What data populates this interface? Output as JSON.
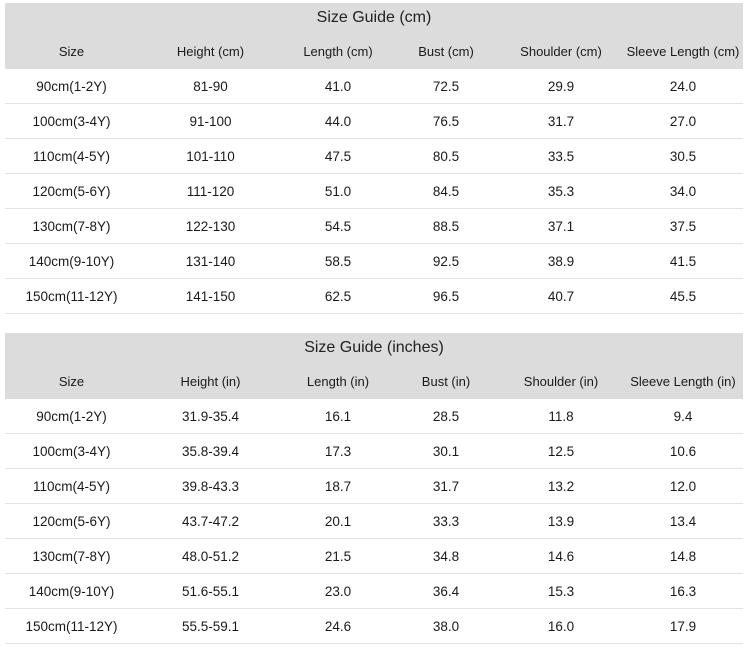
{
  "cm": {
    "title": "Size Guide (cm)",
    "columns": [
      "Size",
      "Height (cm)",
      "Length (cm)",
      "Bust (cm)",
      "Shoulder (cm)",
      "Sleeve Length (cm)"
    ],
    "rows": [
      [
        "90cm(1-2Y)",
        "81-90",
        "41.0",
        "72.5",
        "29.9",
        "24.0"
      ],
      [
        "100cm(3-4Y)",
        "91-100",
        "44.0",
        "76.5",
        "31.7",
        "27.0"
      ],
      [
        "110cm(4-5Y)",
        "101-110",
        "47.5",
        "80.5",
        "33.5",
        "30.5"
      ],
      [
        "120cm(5-6Y)",
        "111-120",
        "51.0",
        "84.5",
        "35.3",
        "34.0"
      ],
      [
        "130cm(7-8Y)",
        "122-130",
        "54.5",
        "88.5",
        "37.1",
        "37.5"
      ],
      [
        "140cm(9-10Y)",
        "131-140",
        "58.5",
        "92.5",
        "38.9",
        "41.5"
      ],
      [
        "150cm(11-12Y)",
        "141-150",
        "62.5",
        "96.5",
        "40.7",
        "45.5"
      ]
    ]
  },
  "inches": {
    "title": "Size Guide (inches)",
    "columns": [
      "Size",
      "Height (in)",
      "Length (in)",
      "Bust (in)",
      "Shoulder (in)",
      "Sleeve Length (in)"
    ],
    "rows": [
      [
        "90cm(1-2Y)",
        "31.9-35.4",
        "16.1",
        "28.5",
        "11.8",
        "9.4"
      ],
      [
        "100cm(3-4Y)",
        "35.8-39.4",
        "17.3",
        "30.1",
        "12.5",
        "10.6"
      ],
      [
        "110cm(4-5Y)",
        "39.8-43.3",
        "18.7",
        "31.7",
        "13.2",
        "12.0"
      ],
      [
        "120cm(5-6Y)",
        "43.7-47.2",
        "20.1",
        "33.3",
        "13.9",
        "13.4"
      ],
      [
        "130cm(7-8Y)",
        "48.0-51.2",
        "21.5",
        "34.8",
        "14.6",
        "14.8"
      ],
      [
        "140cm(9-10Y)",
        "51.6-55.1",
        "23.0",
        "36.4",
        "15.3",
        "16.3"
      ],
      [
        "150cm(11-12Y)",
        "55.5-59.1",
        "24.6",
        "38.0",
        "16.0",
        "17.9"
      ]
    ]
  }
}
